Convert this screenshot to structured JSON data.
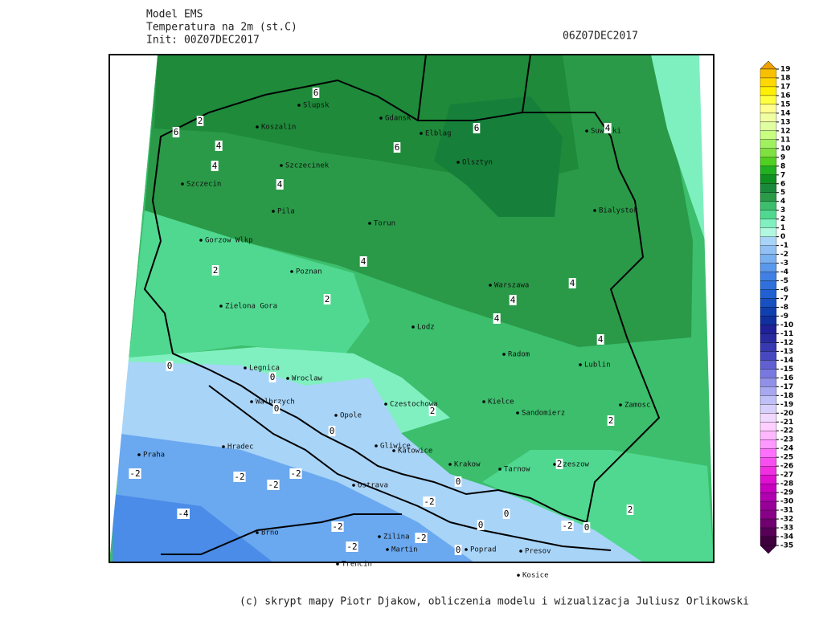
{
  "header": {
    "model": "Model EMS",
    "variable": "Temperatura na 2m (st.C)",
    "init": "Init: 00Z07DEC2017",
    "valid": "06Z07DEC2017"
  },
  "cities": [
    "Slupsk",
    "Koszalin",
    "Gdansk",
    "Elblag",
    "Suwalki",
    "Szczecinek",
    "Olsztyn",
    "Szczecin",
    "Pila",
    "Torun",
    "Bialystok",
    "Gorzow Wlkp",
    "Poznan",
    "Warszawa",
    "Zielona Gora",
    "Lodz",
    "Radom",
    "Lublin",
    "Legnica",
    "Wroclaw",
    "Czestochowa",
    "Kielce",
    "Walbrzych",
    "Opole",
    "Sandomierz",
    "Zamosc",
    "Hradec",
    "Gliwice",
    "Katowice",
    "Praha",
    "Krakow",
    "Tarnow",
    "Rzeszow",
    "Ostrava",
    "Brno",
    "Zilina",
    "Martin",
    "Poprad",
    "Presov",
    "Trencin",
    "Kosice"
  ],
  "contour_labels": [
    6,
    6,
    2,
    4,
    4,
    6,
    6,
    4,
    4,
    4,
    2,
    2,
    4,
    4,
    4,
    4,
    0,
    0,
    0,
    0,
    2,
    2,
    2,
    -2,
    -2,
    -2,
    -2,
    0,
    -2,
    -4,
    2,
    0,
    0,
    -2,
    -2,
    0,
    -2,
    -2,
    0
  ],
  "legend": {
    "levels": [
      19,
      18,
      17,
      16,
      15,
      14,
      13,
      12,
      11,
      10,
      9,
      8,
      7,
      6,
      5,
      4,
      3,
      2,
      1,
      0,
      -1,
      -2,
      -3,
      -4,
      -5,
      -6,
      -7,
      -8,
      -9,
      -10,
      -11,
      -12,
      -13,
      -14,
      -15,
      -16,
      -17,
      -18,
      -19,
      -20,
      -21,
      -22,
      -23,
      -24,
      -25,
      -26,
      -27,
      -28,
      -29,
      -30,
      -31,
      -32,
      -33,
      -34,
      -35
    ],
    "colors": [
      "#f0a000",
      "#f8c000",
      "#ffd800",
      "#fff000",
      "#ffff40",
      "#ffff90",
      "#f0ffa0",
      "#e0ffa0",
      "#c8ff80",
      "#a0f060",
      "#80e040",
      "#50d020",
      "#20b020",
      "#109020",
      "#1a8a3a",
      "#2a9a48",
      "#3cbe6c",
      "#50d890",
      "#80f0c0",
      "#b0f8e0",
      "#a8d4f8",
      "#90c0f4",
      "#78b0f0",
      "#5a98ec",
      "#4080e4",
      "#3070dc",
      "#2060d0",
      "#1850c0",
      "#1040b0",
      "#1030a0",
      "#202098",
      "#2a2aa0",
      "#3838b0",
      "#4848c0",
      "#6060d0",
      "#7878e0",
      "#9090e8",
      "#a8a8f0",
      "#c0c0f8",
      "#d8d0fc",
      "#f0d8ff",
      "#ffd0ff",
      "#ffb8ff",
      "#ff98ff",
      "#ff70ff",
      "#f850f0",
      "#f030e0",
      "#e010d0",
      "#c800c0",
      "#b000b0",
      "#980098",
      "#880088",
      "#700070",
      "#580058",
      "#400040"
    ]
  },
  "footer": "(c) skrypt mapy Piotr Djakow, obliczenia modelu i wizualizacja Juliusz Orlikowski"
}
